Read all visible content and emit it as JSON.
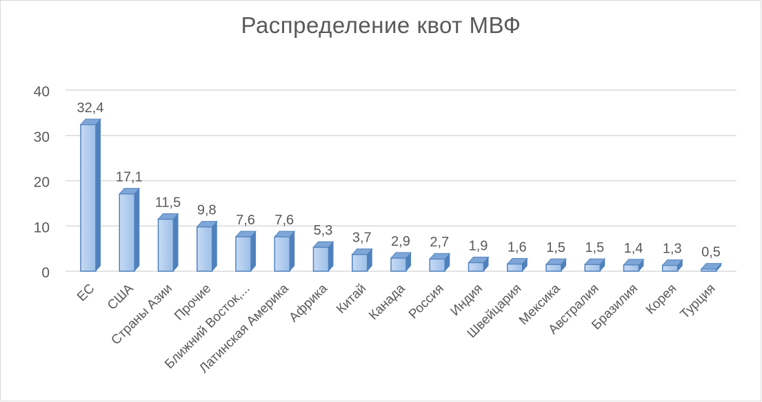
{
  "chart_data": {
    "type": "bar",
    "title": "Распределение квот МВФ",
    "xlabel": "",
    "ylabel": "",
    "ylim": [
      0,
      40
    ],
    "yticks": [
      0,
      10,
      20,
      30,
      40
    ],
    "grid": true,
    "legend": "none",
    "style": "3d-column",
    "colors": {
      "bar_light": "#c6daf3",
      "bar_mid": "#9dbfe8",
      "bar_dark": "#4f81bd",
      "bar_top": "#7fa6d8",
      "grid": "#d9d9d9",
      "text": "#595959"
    },
    "categories": [
      "ЕС",
      "США",
      "Страны Азии",
      "Прочие",
      "Ближний Восток,...",
      "Латинская Америка",
      "Африка",
      "Китай",
      "Канада",
      "Россия",
      "Индия",
      "Швейцария",
      "Мексика",
      "Австралия",
      "Бразилия",
      "Корея",
      "Турция"
    ],
    "values": [
      32.4,
      17.1,
      11.5,
      9.8,
      7.6,
      7.6,
      5.3,
      3.7,
      2.9,
      2.7,
      1.9,
      1.6,
      1.5,
      1.5,
      1.4,
      1.3,
      0.5
    ],
    "data_labels": [
      "32,4",
      "17,1",
      "11,5",
      "9,8",
      "7,6",
      "7,6",
      "5,3",
      "3,7",
      "2,9",
      "2,7",
      "1,9",
      "1,6",
      "1,5",
      "1,5",
      "1,4",
      "1,3",
      "0,5"
    ]
  }
}
